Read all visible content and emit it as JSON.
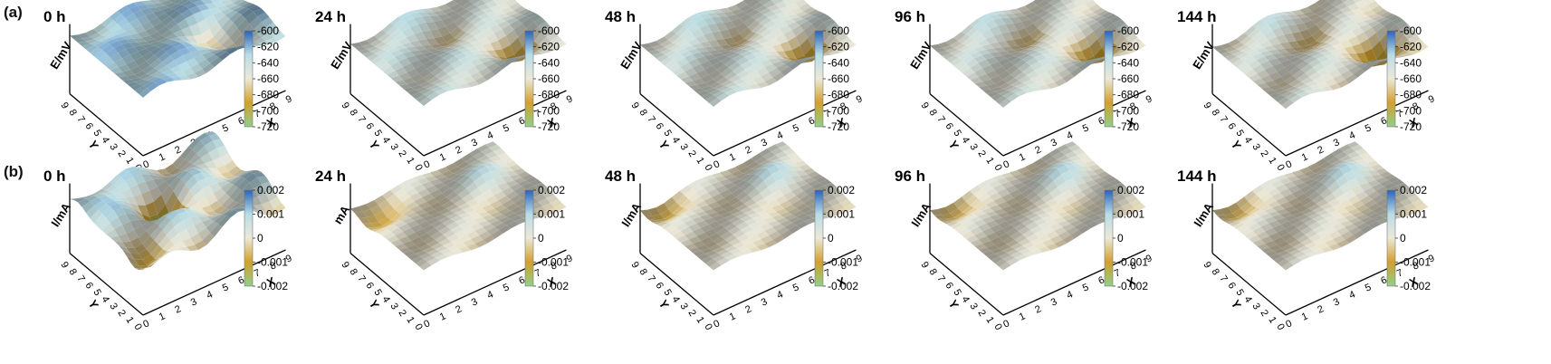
{
  "figure": {
    "colors": {
      "high": "#2b62b9",
      "upper": "#b8dde6",
      "mid": "#ece8d8",
      "lower": "#d2a02a",
      "low": "#8ed08a",
      "axis": "#000000"
    }
  },
  "chart_data": [
    {
      "id": "a-0h",
      "row_label": "(a)",
      "title": "0 h",
      "type": "surface3d",
      "zlabel": "E/mV",
      "xlabel": "X",
      "ylabel": "Y",
      "x": [
        0,
        1,
        2,
        3,
        4,
        5,
        6,
        7,
        8,
        9
      ],
      "y": [
        0,
        1,
        2,
        3,
        4,
        5,
        6,
        7,
        8,
        9
      ],
      "colorbar": {
        "ticks": [
          "-600",
          "-620",
          "-640",
          "-660",
          "-680",
          "-700",
          "-720"
        ],
        "range": [
          -720,
          -600
        ]
      },
      "surface": {
        "base": -628,
        "amp": 12,
        "valleys": [
          {
            "x": 6,
            "y": 4,
            "depth": 35
          },
          {
            "x": 7,
            "y": 2,
            "depth": 30
          }
        ],
        "peak": {
          "x": 8,
          "y": 8,
          "height": 20
        }
      }
    },
    {
      "id": "a-24h",
      "title": "24 h",
      "type": "surface3d",
      "zlabel": "E/mV",
      "xlabel": "X",
      "ylabel": "Y",
      "x": [
        0,
        1,
        2,
        3,
        4,
        5,
        6,
        7,
        8,
        9
      ],
      "y": [
        0,
        1,
        2,
        3,
        4,
        5,
        6,
        7,
        8,
        9
      ],
      "colorbar": {
        "ticks": [
          "-600",
          "-620",
          "-640",
          "-660",
          "-680",
          "-700",
          "-720"
        ],
        "range": [
          -720,
          -600
        ]
      },
      "surface": {
        "base": -648,
        "amp": 10,
        "valleys": [
          {
            "x": 7,
            "y": 2,
            "depth": 45
          },
          {
            "x": 5,
            "y": 6,
            "depth": 25
          }
        ],
        "peak": {
          "x": 3,
          "y": 8,
          "height": 12
        }
      }
    },
    {
      "id": "a-48h",
      "title": "48 h",
      "type": "surface3d",
      "zlabel": "E/mV",
      "xlabel": "X",
      "ylabel": "Y",
      "x": [
        0,
        1,
        2,
        3,
        4,
        5,
        6,
        7,
        8,
        9
      ],
      "y": [
        0,
        1,
        2,
        3,
        4,
        5,
        6,
        7,
        8,
        9
      ],
      "colorbar": {
        "ticks": [
          "-600",
          "-620",
          "-640",
          "-660",
          "-680",
          "-700",
          "-720"
        ],
        "range": [
          -720,
          -600
        ]
      },
      "surface": {
        "base": -650,
        "amp": 10,
        "valleys": [
          {
            "x": 7,
            "y": 2,
            "depth": 45
          },
          {
            "x": 5,
            "y": 6,
            "depth": 25
          }
        ],
        "peak": {
          "x": 3,
          "y": 8,
          "height": 12
        }
      }
    },
    {
      "id": "a-96h",
      "title": "96 h",
      "type": "surface3d",
      "zlabel": "E/mV",
      "xlabel": "X",
      "ylabel": "Y",
      "x": [
        0,
        1,
        2,
        3,
        4,
        5,
        6,
        7,
        8,
        9
      ],
      "y": [
        0,
        1,
        2,
        3,
        4,
        5,
        6,
        7,
        8,
        9
      ],
      "colorbar": {
        "ticks": [
          "-600",
          "-620",
          "-640",
          "-660",
          "-680",
          "-700",
          "-720"
        ],
        "range": [
          -720,
          -600
        ]
      },
      "surface": {
        "base": -652,
        "amp": 10,
        "valleys": [
          {
            "x": 7,
            "y": 2,
            "depth": 45
          },
          {
            "x": 5,
            "y": 6,
            "depth": 25
          }
        ],
        "peak": {
          "x": 3,
          "y": 8,
          "height": 12
        }
      }
    },
    {
      "id": "a-144h",
      "title": "144 h",
      "type": "surface3d",
      "zlabel": "E/mV",
      "xlabel": "X",
      "ylabel": "Y",
      "x": [
        0,
        1,
        2,
        3,
        4,
        5,
        6,
        7,
        8,
        9
      ],
      "y": [
        0,
        1,
        2,
        3,
        4,
        5,
        6,
        7,
        8,
        9
      ],
      "colorbar": {
        "ticks": [
          "-600",
          "-620",
          "-640",
          "-660",
          "-680",
          "-700",
          "-720"
        ],
        "range": [
          -720,
          -600
        ]
      },
      "surface": {
        "base": -655,
        "amp": 10,
        "valleys": [
          {
            "x": 7,
            "y": 2,
            "depth": 48
          },
          {
            "x": 5,
            "y": 6,
            "depth": 25
          }
        ],
        "peak": {
          "x": 3,
          "y": 8,
          "height": 12
        }
      }
    },
    {
      "id": "b-0h",
      "row_label": "(b)",
      "title": "0 h",
      "type": "surface3d",
      "zlabel": "I/mA",
      "xlabel": "X",
      "ylabel": "Y",
      "x": [
        0,
        1,
        2,
        3,
        4,
        5,
        6,
        7,
        8,
        9
      ],
      "y": [
        0,
        1,
        2,
        3,
        4,
        5,
        6,
        7,
        8,
        9
      ],
      "colorbar": {
        "ticks": [
          "0.002",
          "0.001",
          "0",
          "-0.001",
          "-0.002"
        ],
        "range": [
          -0.002,
          0.002
        ]
      },
      "surface": {
        "base": 0.0004,
        "amp": 0.0008,
        "valleys": [
          {
            "x": 4,
            "y": 5,
            "depth": 0.0018
          },
          {
            "x": 1,
            "y": 1,
            "depth": 0.0016
          }
        ],
        "peak": {
          "x": 1,
          "y": 8,
          "height": 0.0012
        }
      }
    },
    {
      "id": "b-24h",
      "title": "24 h",
      "type": "surface3d",
      "zlabel": "mA",
      "xlabel": "X",
      "ylabel": "Y",
      "x": [
        0,
        1,
        2,
        3,
        4,
        5,
        6,
        7,
        8,
        9
      ],
      "y": [
        0,
        1,
        2,
        3,
        4,
        5,
        6,
        7,
        8,
        9
      ],
      "colorbar": {
        "ticks": [
          "0.002",
          "0.001",
          "0",
          "-0.001",
          "-0.002"
        ],
        "range": [
          -0.002,
          0.002
        ]
      },
      "surface": {
        "base": 0.0,
        "amp": 0.0002,
        "valleys": [
          {
            "x": 1,
            "y": 7,
            "depth": 0.0009
          }
        ],
        "peak": {
          "x": 7,
          "y": 6,
          "height": 0.0009
        }
      }
    },
    {
      "id": "b-48h",
      "title": "48 h",
      "type": "surface3d",
      "zlabel": "I/mA",
      "xlabel": "X",
      "ylabel": "Y",
      "x": [
        0,
        1,
        2,
        3,
        4,
        5,
        6,
        7,
        8,
        9
      ],
      "y": [
        0,
        1,
        2,
        3,
        4,
        5,
        6,
        7,
        8,
        9
      ],
      "colorbar": {
        "ticks": [
          "0.002",
          "0.001",
          "0",
          "-0.001",
          "-0.002"
        ],
        "range": [
          -0.002,
          0.002
        ]
      },
      "surface": {
        "base": 0.0,
        "amp": 0.0002,
        "valleys": [
          {
            "x": 1,
            "y": 8,
            "depth": 0.0007
          }
        ],
        "peak": {
          "x": 7,
          "y": 6,
          "height": 0.001
        }
      }
    },
    {
      "id": "b-96h",
      "title": "96 h",
      "type": "surface3d",
      "zlabel": "I/mA",
      "xlabel": "X",
      "ylabel": "Y",
      "x": [
        0,
        1,
        2,
        3,
        4,
        5,
        6,
        7,
        8,
        9
      ],
      "y": [
        0,
        1,
        2,
        3,
        4,
        5,
        6,
        7,
        8,
        9
      ],
      "colorbar": {
        "ticks": [
          "0.002",
          "0.001",
          "0",
          "-0.001",
          "-0.002"
        ],
        "range": [
          -0.002,
          0.002
        ]
      },
      "surface": {
        "base": 0.0,
        "amp": 0.0002,
        "valleys": [
          {
            "x": 1,
            "y": 8,
            "depth": 0.0006
          }
        ],
        "peak": {
          "x": 7,
          "y": 6,
          "height": 0.001
        }
      }
    },
    {
      "id": "b-144h",
      "title": "144 h",
      "type": "surface3d",
      "zlabel": "I/mA",
      "xlabel": "X",
      "ylabel": "Y",
      "x": [
        0,
        1,
        2,
        3,
        4,
        5,
        6,
        7,
        8,
        9
      ],
      "y": [
        0,
        1,
        2,
        3,
        4,
        5,
        6,
        7,
        8,
        9
      ],
      "colorbar": {
        "ticks": [
          "0.002",
          "0.001",
          "0",
          "-0.001",
          "-0.002"
        ],
        "range": [
          -0.002,
          0.002
        ]
      },
      "surface": {
        "base": 0.0,
        "amp": 0.0002,
        "valleys": [
          {
            "x": 1,
            "y": 8,
            "depth": 0.0006
          }
        ],
        "peak": {
          "x": 7,
          "y": 6,
          "height": 0.001
        }
      }
    }
  ]
}
